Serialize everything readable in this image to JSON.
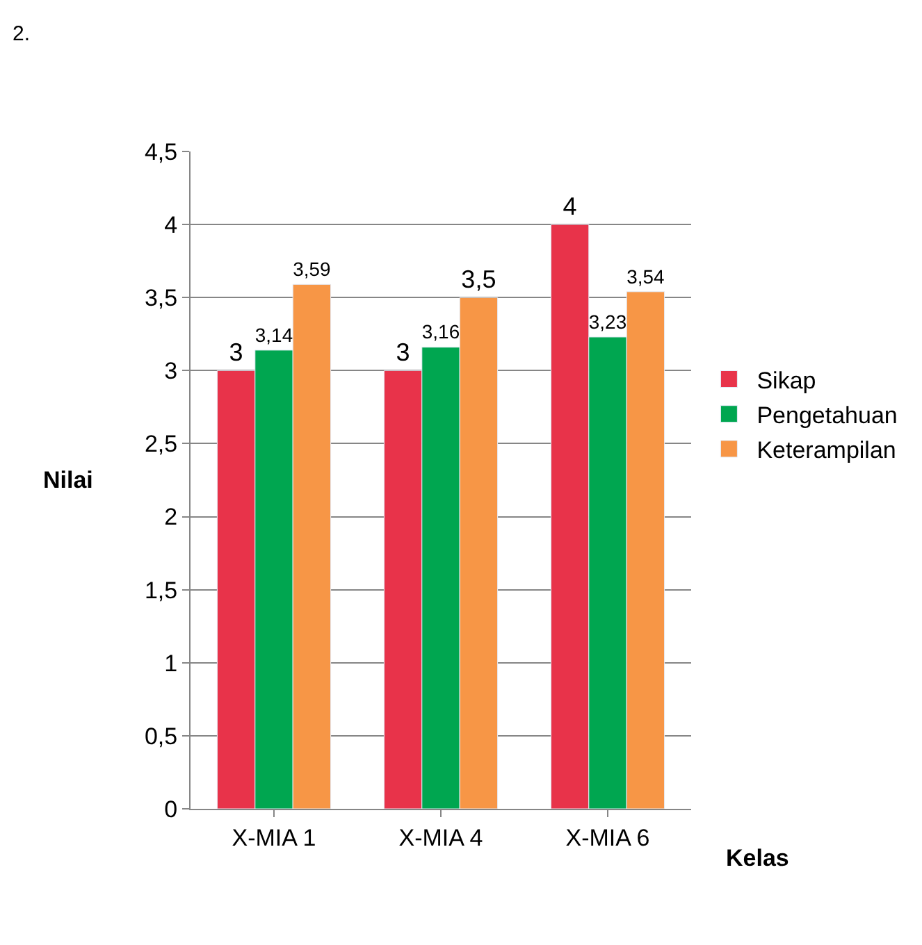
{
  "chart_data": {
    "type": "bar",
    "xlabel": "Kelas",
    "ylabel": "Nilai",
    "categories": [
      "X-MIA 1",
      "X-MIA 4",
      "X-MIA 6"
    ],
    "series": [
      {
        "name": "Sikap",
        "color": "#e8334a",
        "values": [
          3,
          3,
          4
        ],
        "value_labels": [
          "3",
          "3",
          "4"
        ]
      },
      {
        "name": "Pengetahuan",
        "color": "#00a650",
        "values": [
          3.14,
          3.16,
          3.23
        ],
        "value_labels": [
          "3,14",
          "3,16",
          "3,23"
        ]
      },
      {
        "name": "Keterampilan",
        "color": "#f79646",
        "values": [
          3.59,
          3.5,
          3.54
        ],
        "value_labels": [
          "3,59",
          "3,5",
          "3,54"
        ]
      }
    ],
    "ylim": [
      0,
      4.5
    ],
    "yticks": [
      0,
      {
        "value": 0.5,
        "label": "0,5"
      },
      1,
      {
        "value": 1.5,
        "label": "1,5"
      },
      2,
      {
        "value": 2.5,
        "label": "2,5"
      },
      3,
      {
        "value": 3.5,
        "label": "3,5"
      },
      4,
      {
        "value": 4.5,
        "label": "4,5"
      }
    ],
    "grid": "y",
    "legend": "right",
    "annotations": [
      "2."
    ]
  }
}
